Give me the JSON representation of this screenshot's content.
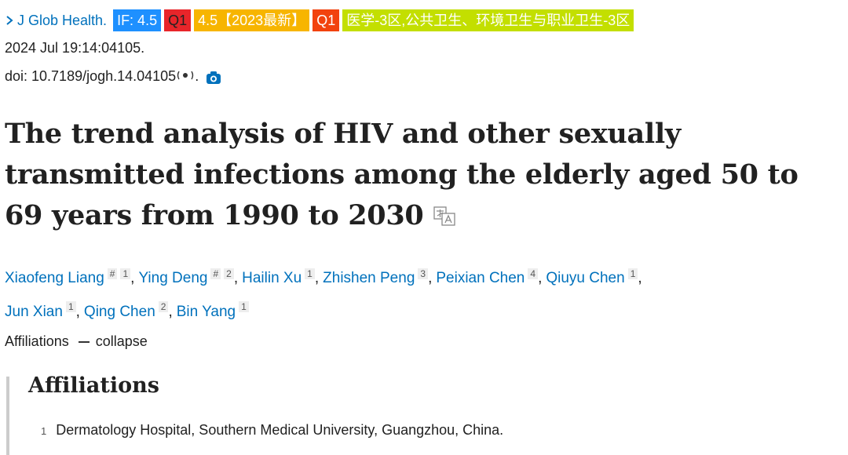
{
  "journal": {
    "name": "J Glob Health.",
    "badges": [
      "IF: 4.5",
      "Q1",
      "4.5【2023最新】",
      "Q1",
      "医学-3区,公共卫生、环境卫生与职业卫生-3区"
    ]
  },
  "date": "2024 Jul 19:14:04105.",
  "doi": "doi: 10.7189/jogh.14.04105",
  "doi_suffix": ".",
  "title": "The trend analysis of HIV and other sexually transmitted infections among the elderly aged 50 to 69 years from 1990 to 2030",
  "author_separator": ",",
  "authors": [
    {
      "name": "Xiaofeng Liang",
      "equal": "#",
      "affiliation": "1"
    },
    {
      "name": "Ying Deng",
      "equal": "#",
      "affiliation": "2"
    },
    {
      "name": "Hailin Xu",
      "affiliation": "1"
    },
    {
      "name": "Zhishen Peng",
      "affiliation": "3"
    },
    {
      "name": "Peixian Chen",
      "affiliation": "4"
    },
    {
      "name": "Qiuyu Chen",
      "affiliation": "1"
    },
    {
      "name": "Jun Xian",
      "affiliation": "1"
    },
    {
      "name": "Qing Chen",
      "affiliation": "2"
    },
    {
      "name": "Bin Yang",
      "affiliation": "1"
    }
  ],
  "affiliations_toggle": {
    "label": "Affiliations",
    "action": "collapse"
  },
  "affiliations": {
    "heading": "Affiliations",
    "items": [
      {
        "number": "1",
        "text": "Dermatology Hospital, Southern Medical University, Guangzhou, China."
      }
    ]
  }
}
